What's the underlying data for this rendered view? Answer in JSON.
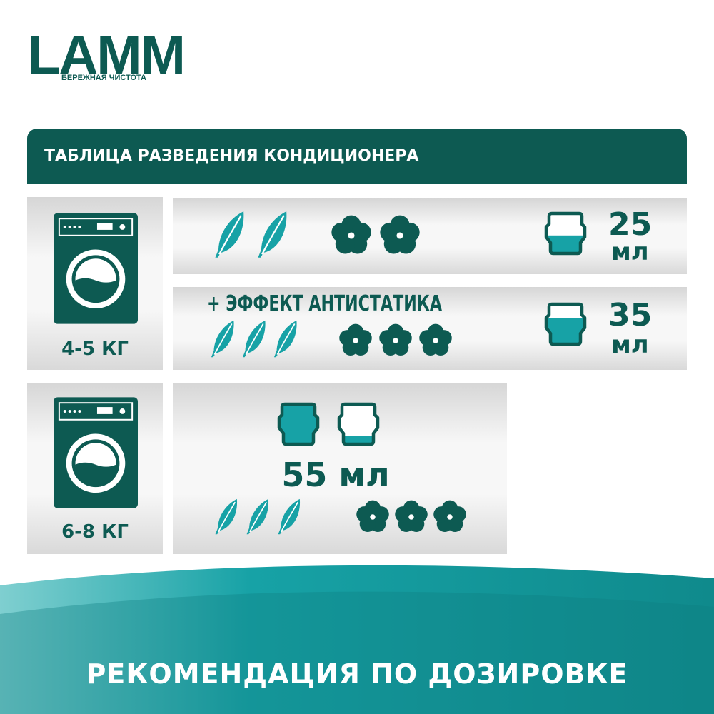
{
  "brand": {
    "logo": "LAMM",
    "tagline": "БЕРЕЖНАЯ ЧИСТОТА"
  },
  "colors": {
    "dark": "#0d5a52",
    "accent": "#17a2a6"
  },
  "header": {
    "title": "ТАБЛИЦА РАЗВЕДЕНИЯ КОНДИЦИОНЕРА"
  },
  "groups": [
    {
      "load": "4-5 КГ",
      "icon": "washing-machine-icon"
    },
    {
      "load": "6-8 КГ",
      "icon": "washing-machine-icon"
    }
  ],
  "rows": [
    {
      "feathers": 2,
      "flowers": 2,
      "amount": "25",
      "unit": "мл",
      "cup_fill": 0.45
    },
    {
      "note": "+ ЭФФЕКТ АНТИСТАТИКА",
      "feathers": 3,
      "flowers": 3,
      "amount": "35",
      "unit": "мл",
      "cup_fill": 0.65
    },
    {
      "feathers": 3,
      "flowers": 3,
      "amount_text": "55 мл",
      "cup_fills": [
        1.0,
        0.2
      ]
    }
  ],
  "footer": {
    "title": "РЕКОМЕНДАЦИЯ ПО ДОЗИРОВКЕ"
  }
}
